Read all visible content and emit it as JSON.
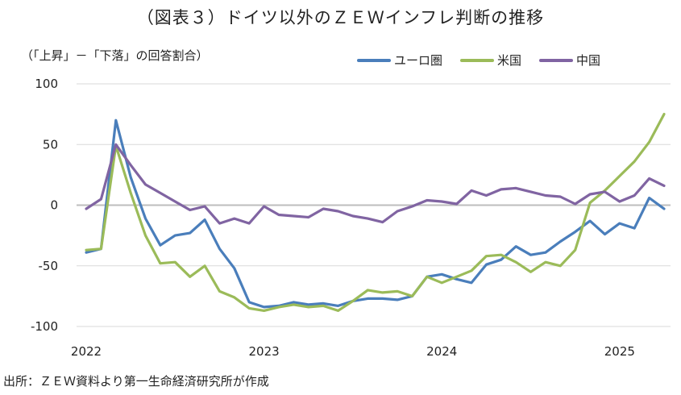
{
  "title": "（図表３）ドイツ以外のＺＥＷインフレ判断の推移",
  "subtitle": "（「上昇」－「下落」の回答割合）",
  "source": "出所：ＺＥＷ資料より第一生命経済研究所が作成",
  "chart_data": {
    "type": "line",
    "ylim": [
      -100,
      100
    ],
    "yticks": [
      {
        "value": 100,
        "label": "100"
      },
      {
        "value": 50,
        "label": "50"
      },
      {
        "value": 0,
        "label": "0"
      },
      {
        "value": -50,
        "label": "-50"
      },
      {
        "value": -100,
        "label": "-100",
        "color": "#d22020"
      }
    ],
    "x_start": "2022-01",
    "xticks": [
      {
        "date": "2022-01",
        "label": "2022"
      },
      {
        "date": "2023-01",
        "label": "2023"
      },
      {
        "date": "2024-01",
        "label": "2024"
      },
      {
        "date": "2025-01",
        "label": "2025"
      }
    ],
    "x_end": "2025-04",
    "grid": "horizontal",
    "legend": "top-right",
    "series": [
      {
        "name": "ユーロ圏",
        "color": "#4a7ebb",
        "values": [
          -39,
          -36,
          70,
          23,
          -11,
          -33,
          -25,
          -23,
          -12,
          -36,
          -52,
          -80,
          -84,
          -83,
          -80,
          -82,
          -81,
          -83,
          -79,
          -77,
          -77,
          -78,
          -75,
          -59,
          -57,
          -61,
          -64,
          -49,
          -45,
          -34,
          -41,
          -39,
          -30,
          -22,
          -13,
          -24,
          -15,
          -19,
          6,
          -3
        ]
      },
      {
        "name": "米国",
        "color": "#9bbb59",
        "values": [
          -37,
          -36,
          49,
          10,
          -25,
          -48,
          -47,
          -59,
          -50,
          -71,
          -76,
          -85,
          -87,
          -84,
          -82,
          -84,
          -83,
          -87,
          -79,
          -70,
          -72,
          -71,
          -75,
          -59,
          -64,
          -59,
          -54,
          -42,
          -41,
          -47,
          -55,
          -47,
          -50,
          -37,
          2,
          12,
          24,
          36,
          52,
          75
        ]
      },
      {
        "name": "中国",
        "color": "#8064a2",
        "values": [
          -3,
          5,
          50,
          33,
          17,
          10,
          3,
          -4,
          -1,
          -15,
          -11,
          -15,
          -1,
          -8,
          -9,
          -10,
          -3,
          -5,
          -9,
          -11,
          -14,
          -5,
          -1,
          4,
          3,
          1,
          12,
          8,
          13,
          14,
          11,
          8,
          7,
          1,
          9,
          11,
          3,
          8,
          22,
          16
        ]
      }
    ]
  }
}
